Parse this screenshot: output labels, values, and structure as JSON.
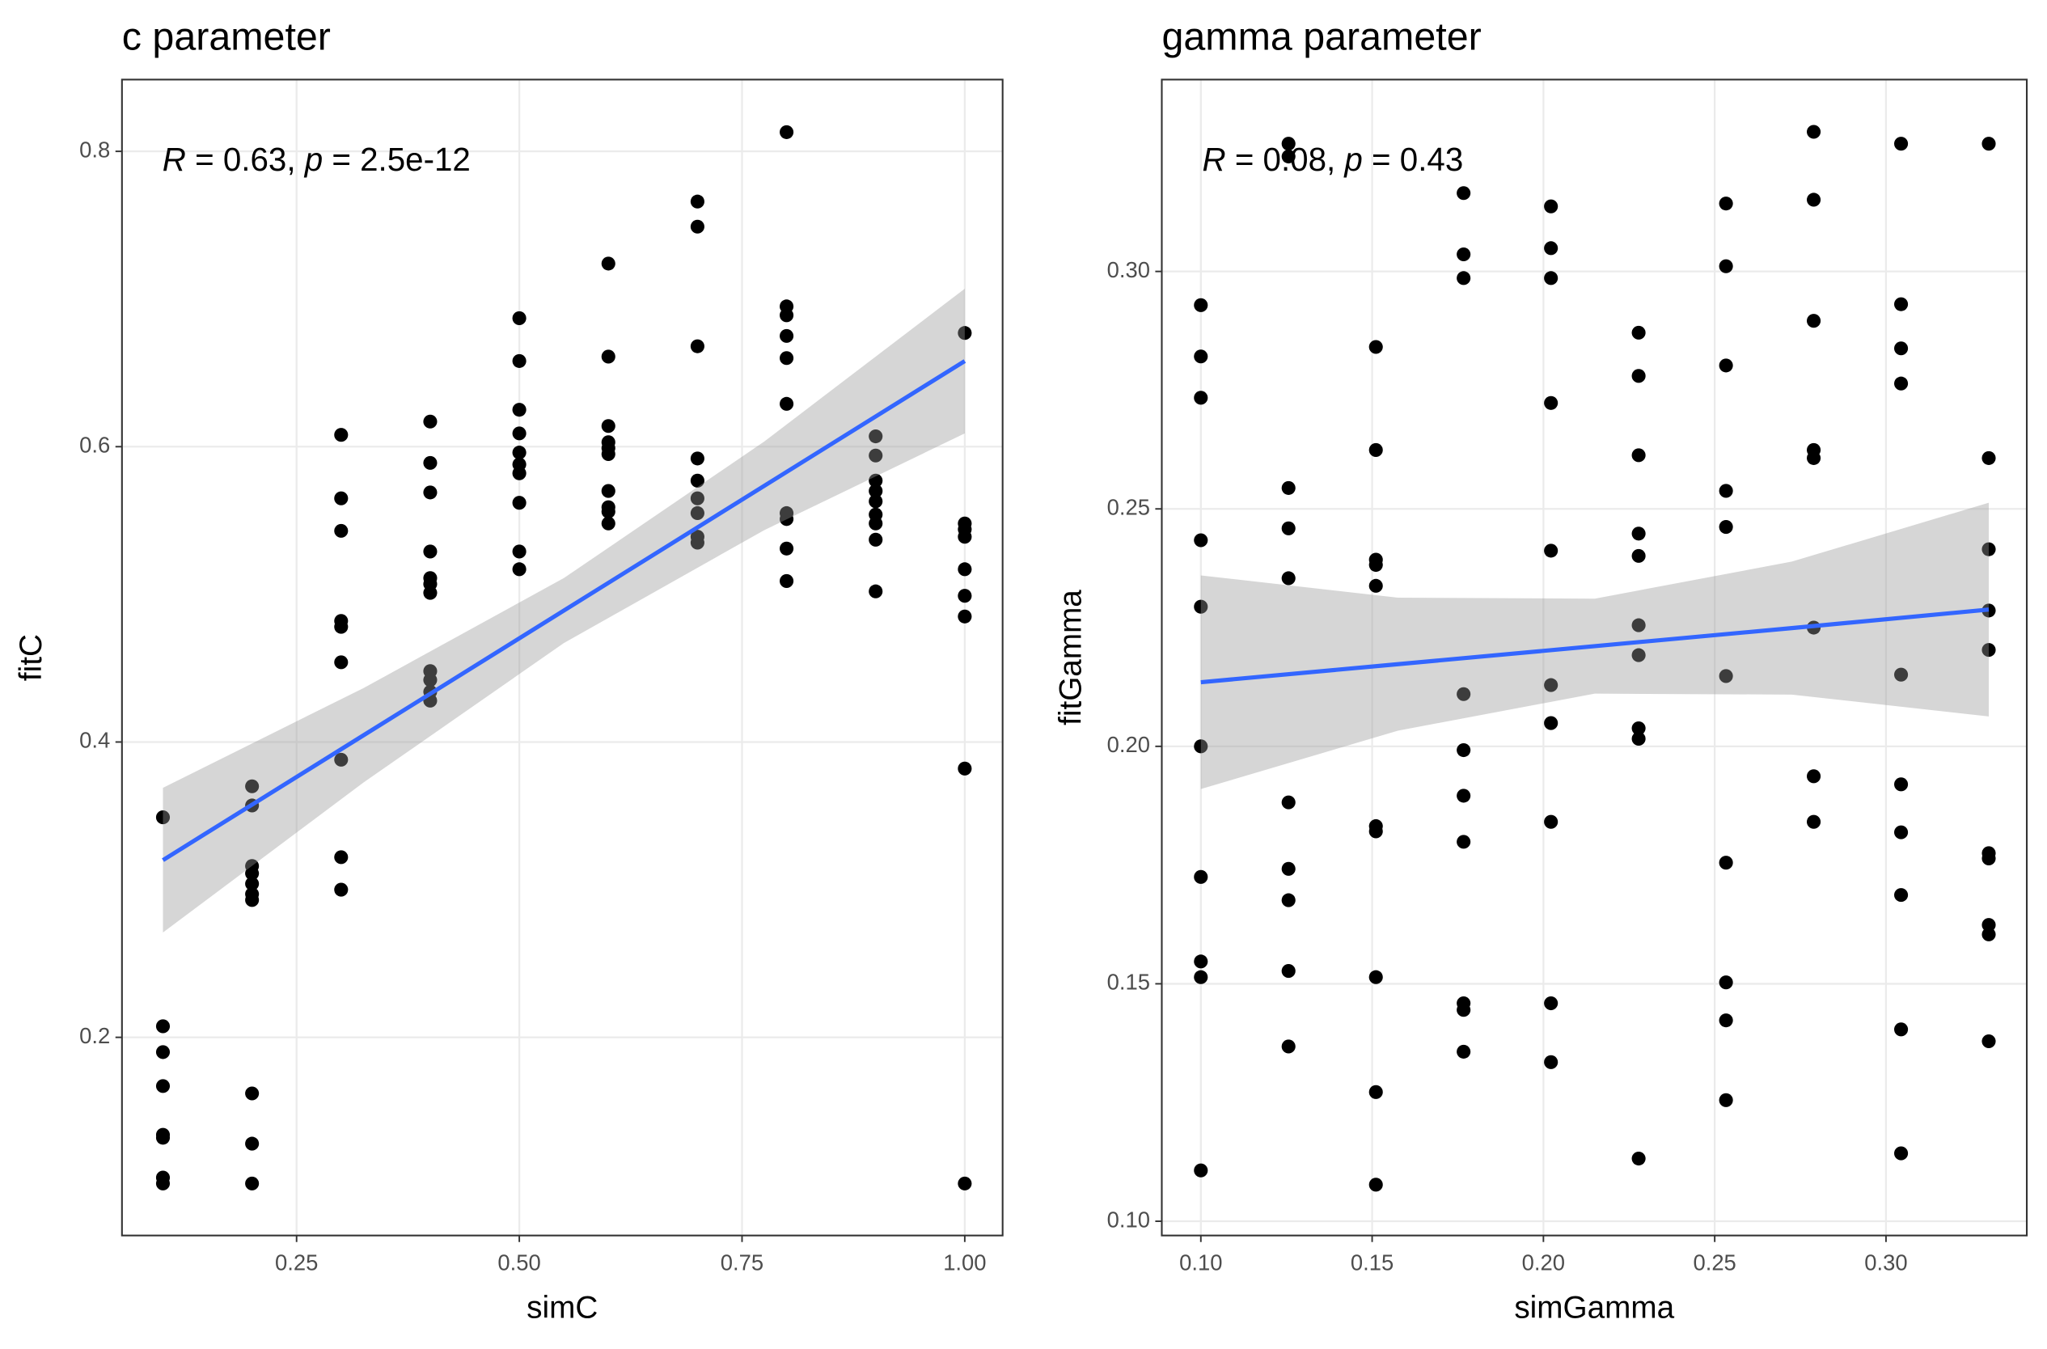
{
  "chart_data": [
    {
      "type": "scatter",
      "title": "c parameter",
      "x_label": "simC",
      "y_label": "fitC",
      "annotation": [
        {
          "text": "R",
          "italic": true
        },
        {
          "text": " = 0.63, ",
          "italic": false
        },
        {
          "text": "p",
          "italic": true
        },
        {
          "text": " = 2.5e-12",
          "italic": false
        }
      ],
      "x": [
        0.1,
        0.1,
        0.1,
        0.1,
        0.1,
        0.1,
        0.1,
        0.1,
        0.2,
        0.2,
        0.2,
        0.2,
        0.2,
        0.2,
        0.2,
        0.2,
        0.2,
        0.2,
        0.3,
        0.3,
        0.3,
        0.3,
        0.3,
        0.3,
        0.3,
        0.3,
        0.3,
        0.4,
        0.4,
        0.4,
        0.4,
        0.4,
        0.4,
        0.4,
        0.4,
        0.4,
        0.4,
        0.4,
        0.5,
        0.5,
        0.5,
        0.5,
        0.5,
        0.5,
        0.5,
        0.5,
        0.5,
        0.5,
        0.6,
        0.6,
        0.6,
        0.6,
        0.6,
        0.6,
        0.6,
        0.6,
        0.6,
        0.6,
        0.7,
        0.7,
        0.7,
        0.7,
        0.7,
        0.7,
        0.7,
        0.7,
        0.7,
        0.8,
        0.8,
        0.8,
        0.8,
        0.8,
        0.8,
        0.8,
        0.8,
        0.8,
        0.8,
        0.9,
        0.9,
        0.9,
        0.9,
        0.9,
        0.9,
        0.9,
        0.9,
        0.9,
        1.0,
        1.0,
        1.0,
        1.0,
        1.0,
        1.0,
        1.0,
        1.0,
        1.0
      ],
      "values": [
        0.349,
        0.2075,
        0.19,
        0.167,
        0.134,
        0.132,
        0.105,
        0.101,
        0.37,
        0.357,
        0.316,
        0.311,
        0.304,
        0.297,
        0.293,
        0.162,
        0.128,
        0.101,
        0.608,
        0.565,
        0.543,
        0.482,
        0.478,
        0.454,
        0.388,
        0.322,
        0.3,
        0.617,
        0.589,
        0.569,
        0.529,
        0.511,
        0.507,
        0.501,
        0.448,
        0.442,
        0.434,
        0.428,
        0.687,
        0.658,
        0.625,
        0.609,
        0.596,
        0.588,
        0.582,
        0.562,
        0.529,
        0.517,
        0.724,
        0.661,
        0.614,
        0.603,
        0.599,
        0.595,
        0.57,
        0.559,
        0.556,
        0.548,
        0.766,
        0.749,
        0.668,
        0.592,
        0.577,
        0.565,
        0.555,
        0.539,
        0.535,
        0.813,
        0.695,
        0.689,
        0.675,
        0.66,
        0.629,
        0.555,
        0.551,
        0.531,
        0.509,
        0.607,
        0.594,
        0.577,
        0.57,
        0.563,
        0.554,
        0.548,
        0.537,
        0.502,
        0.677,
        0.548,
        0.544,
        0.539,
        0.517,
        0.499,
        0.485,
        0.382,
        0.101
      ],
      "color": "#000000",
      "fit": {
        "color": "#3366ff",
        "band_color": "#999999",
        "x": [
          0.1,
          0.325,
          0.55,
          0.775,
          1.0
        ],
        "values": [
          0.32,
          0.4045,
          0.489,
          0.5735,
          0.658
        ],
        "lower": [
          0.271,
          0.3725,
          0.467,
          0.5435,
          0.609
        ],
        "upper": [
          0.369,
          0.4365,
          0.511,
          0.6035,
          0.707
        ]
      },
      "xlim": [
        0.054,
        1.0425
      ],
      "ylim": [
        0.0658,
        0.8486
      ],
      "xticks": [
        0.25,
        {
          "value": 0.5,
          "label": "0.50"
        },
        0.75,
        {
          "value": 1.0,
          "label": "1.00"
        }
      ],
      "yticks": [
        0.2,
        0.4,
        0.6,
        0.8
      ],
      "grid": true
    },
    {
      "type": "scatter",
      "title": "gamma parameter",
      "x_label": "simGamma",
      "y_label": "fitGamma",
      "annotation": [
        {
          "text": "R",
          "italic": true
        },
        {
          "text": " = 0.08, ",
          "italic": false
        },
        {
          "text": "p",
          "italic": true
        },
        {
          "text": " = 0.43",
          "italic": false
        }
      ],
      "x": [
        0.1,
        0.1,
        0.1,
        0.1,
        0.1,
        0.1,
        0.1,
        0.1,
        0.1,
        0.1,
        0.1256,
        0.1256,
        0.1256,
        0.1256,
        0.1256,
        0.1256,
        0.1256,
        0.1256,
        0.1256,
        0.1256,
        0.1511,
        0.1511,
        0.1511,
        0.1511,
        0.1511,
        0.1511,
        0.1511,
        0.1511,
        0.1511,
        0.1511,
        0.1767,
        0.1767,
        0.1767,
        0.1767,
        0.1767,
        0.1767,
        0.1767,
        0.1767,
        0.1767,
        0.1767,
        0.2022,
        0.2022,
        0.2022,
        0.2022,
        0.2022,
        0.2022,
        0.2022,
        0.2022,
        0.2022,
        0.2022,
        0.2278,
        0.2278,
        0.2278,
        0.2278,
        0.2278,
        0.2278,
        0.2278,
        0.2278,
        0.2278,
        0.2278,
        0.2533,
        0.2533,
        0.2533,
        0.2533,
        0.2533,
        0.2533,
        0.2533,
        0.2533,
        0.2533,
        0.2533,
        0.2789,
        0.2789,
        0.2789,
        0.2789,
        0.2789,
        0.2789,
        0.2789,
        0.2789,
        0.3044,
        0.3044,
        0.3044,
        0.3044,
        0.3044,
        0.3044,
        0.3044,
        0.3044,
        0.3044,
        0.3044,
        0.33,
        0.33,
        0.33,
        0.33,
        0.33,
        0.33,
        0.33,
        0.33,
        0.33,
        0.33
      ],
      "values": [
        0.2929,
        0.2821,
        0.2734,
        0.2434,
        0.2294,
        0.2,
        0.1725,
        0.1547,
        0.1514,
        0.1107,
        0.3269,
        0.3242,
        0.2544,
        0.2459,
        0.2354,
        0.1882,
        0.1742,
        0.1676,
        0.1527,
        0.1368,
        0.2841,
        0.2624,
        0.2393,
        0.2382,
        0.2338,
        0.1832,
        0.1821,
        0.1514,
        0.1272,
        0.1077,
        0.3165,
        0.3036,
        0.2986,
        0.211,
        0.1992,
        0.1896,
        0.1799,
        0.1459,
        0.1445,
        0.1357,
        0.3137,
        0.3049,
        0.2986,
        0.2723,
        0.2412,
        0.2129,
        0.2049,
        0.1841,
        0.1459,
        0.1335,
        0.2871,
        0.278,
        0.2613,
        0.2448,
        0.2401,
        0.2255,
        0.2192,
        0.2038,
        0.2016,
        0.1132,
        0.3143,
        0.3011,
        0.2802,
        0.2538,
        0.2462,
        0.2148,
        0.1755,
        0.1503,
        0.1423,
        0.1255,
        0.3294,
        0.3151,
        0.2896,
        0.2624,
        0.2607,
        0.225,
        0.1937,
        0.1841,
        0.3269,
        0.2931,
        0.2838,
        0.2764,
        0.2151,
        0.192,
        0.1819,
        0.1687,
        0.1404,
        0.1143,
        0.3269,
        0.2607,
        0.2415,
        0.2286,
        0.2203,
        0.1775,
        0.1764,
        0.1624,
        0.1604,
        0.1379
      ],
      "color": "#000000",
      "fit": {
        "color": "#3366ff",
        "band_color": "#999999",
        "x": [
          0.1,
          0.1575,
          0.215,
          0.2725,
          0.33
        ],
        "values": [
          0.2135,
          0.2173,
          0.2211,
          0.2249,
          0.2288
        ],
        "lower": [
          0.191,
          0.2033,
          0.2111,
          0.2109,
          0.2063
        ],
        "upper": [
          0.236,
          0.2313,
          0.2311,
          0.2389,
          0.2513
        ]
      },
      "xlim": [
        0.0886,
        0.3411
      ],
      "ylim": [
        0.097,
        0.3404
      ],
      "xticks": [
        {
          "value": 0.1,
          "label": "0.10"
        },
        0.15,
        {
          "value": 0.2,
          "label": "0.20"
        },
        0.25,
        {
          "value": 0.3,
          "label": "0.30"
        }
      ],
      "yticks": [
        {
          "value": 0.1,
          "label": "0.10"
        },
        0.15,
        {
          "value": 0.2,
          "label": "0.20"
        },
        0.25,
        {
          "value": 0.3,
          "label": "0.30"
        }
      ],
      "grid": true
    }
  ]
}
